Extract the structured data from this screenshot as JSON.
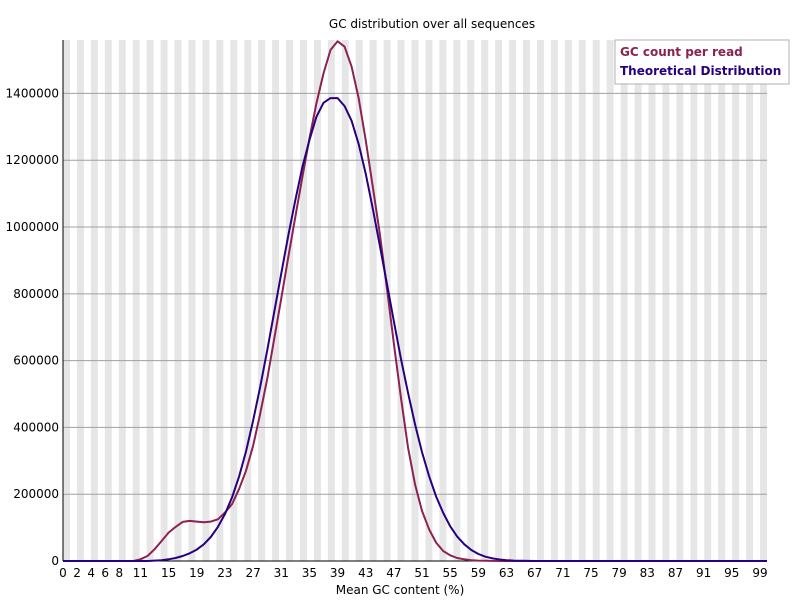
{
  "chart_data": {
    "type": "line",
    "title": "GC distribution over all sequences",
    "xlabel": "Mean GC content (%)",
    "ylabel": "",
    "xlim": [
      0,
      100
    ],
    "ylim": [
      0,
      1560000
    ],
    "x_ticks": [
      0,
      2,
      4,
      6,
      8,
      11,
      15,
      19,
      23,
      27,
      31,
      35,
      39,
      43,
      47,
      51,
      55,
      59,
      63,
      67,
      71,
      75,
      79,
      83,
      87,
      91,
      95,
      99
    ],
    "y_ticks": [
      0,
      200000,
      400000,
      600000,
      800000,
      1000000,
      1200000,
      1400000
    ],
    "grid": "horizontal",
    "background_stripes": true,
    "legend_position": "top-right",
    "series": [
      {
        "name": "GC count per read",
        "color": "#8b2252",
        "x": [
          0,
          10,
          11,
          12,
          13,
          14,
          15,
          16,
          17,
          18,
          19,
          20,
          21,
          22,
          23,
          24,
          25,
          26,
          27,
          28,
          29,
          30,
          31,
          32,
          33,
          34,
          35,
          36,
          37,
          38,
          39,
          40,
          41,
          42,
          43,
          44,
          45,
          46,
          47,
          48,
          49,
          50,
          51,
          52,
          53,
          54,
          55,
          56,
          57,
          58,
          59,
          60,
          61,
          62,
          63,
          64,
          65,
          66,
          67,
          100
        ],
        "y": [
          0,
          0,
          5000,
          15000,
          35000,
          60000,
          85000,
          102000,
          117000,
          120000,
          118000,
          116000,
          118000,
          125000,
          145000,
          170000,
          215000,
          270000,
          345000,
          440000,
          545000,
          665000,
          785000,
          910000,
          1030000,
          1150000,
          1265000,
          1370000,
          1460000,
          1530000,
          1556000,
          1540000,
          1480000,
          1385000,
          1260000,
          1120000,
          980000,
          820000,
          650000,
          490000,
          340000,
          230000,
          150000,
          95000,
          55000,
          30000,
          17000,
          9000,
          5000,
          2500,
          1200,
          600,
          300,
          120,
          50,
          20,
          10,
          5,
          0,
          0
        ]
      },
      {
        "name": "Theoretical Distribution",
        "color": "#27007f",
        "x": [
          0,
          12,
          14,
          15,
          16,
          17,
          18,
          19,
          20,
          21,
          22,
          23,
          24,
          25,
          26,
          27,
          28,
          29,
          30,
          31,
          32,
          33,
          34,
          35,
          36,
          37,
          38,
          39,
          40,
          41,
          42,
          43,
          44,
          45,
          46,
          47,
          48,
          49,
          50,
          51,
          52,
          53,
          54,
          55,
          56,
          57,
          58,
          59,
          60,
          61,
          62,
          63,
          64,
          65,
          66,
          67,
          68,
          100
        ],
        "y": [
          0,
          0,
          2000,
          5000,
          9000,
          15000,
          23000,
          34000,
          50000,
          72000,
          102000,
          140000,
          190000,
          252000,
          328000,
          420000,
          520000,
          630000,
          745000,
          860000,
          975000,
          1080000,
          1180000,
          1260000,
          1330000,
          1372000,
          1386000,
          1386000,
          1362000,
          1318000,
          1248000,
          1160000,
          1055000,
          945000,
          832000,
          717000,
          606000,
          504000,
          410000,
          326000,
          254000,
          193000,
          144000,
          104000,
          73000,
          50000,
          33000,
          21000,
          13000,
          8000,
          4500,
          2400,
          1200,
          600,
          300,
          100,
          0,
          0
        ]
      }
    ]
  }
}
